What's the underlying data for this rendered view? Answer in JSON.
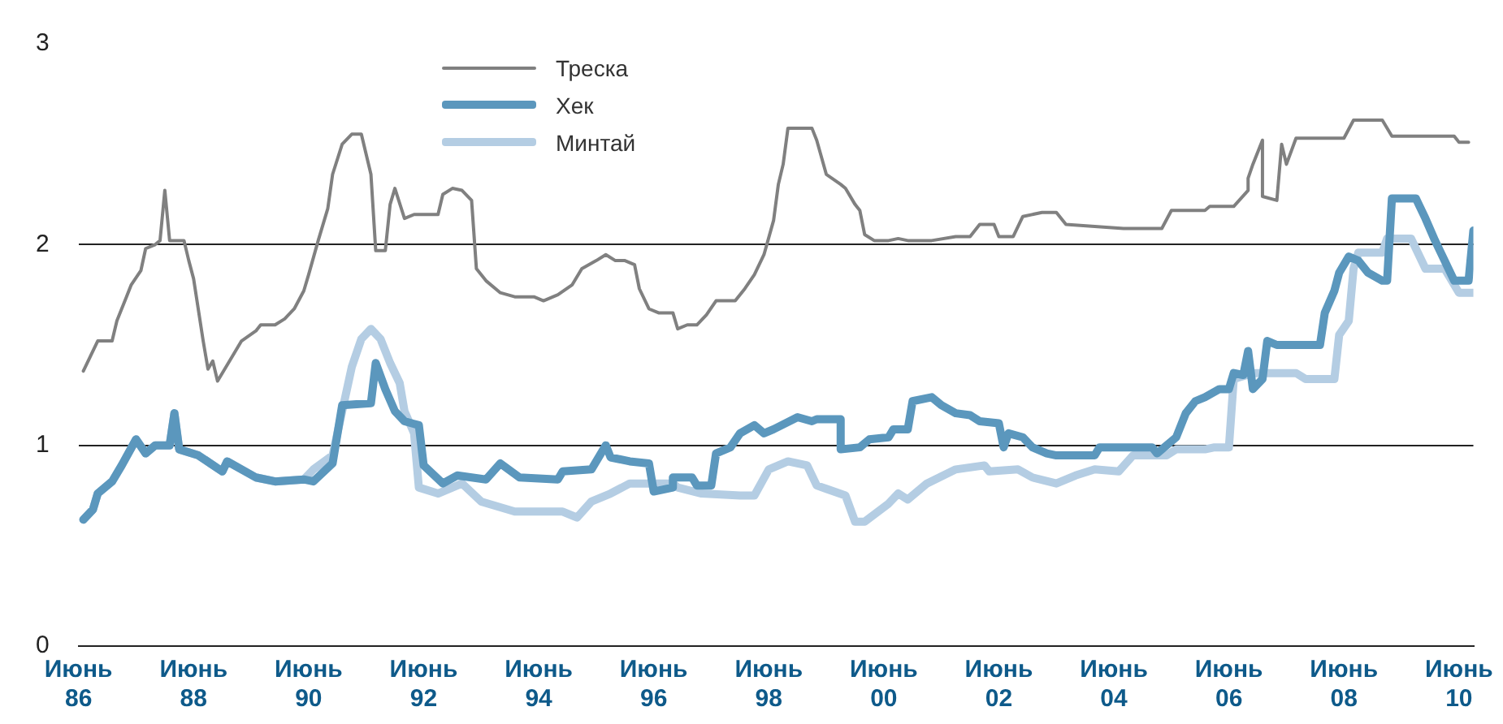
{
  "chart_data": {
    "type": "line",
    "legend": "top left",
    "grid": "y",
    "marker": "none",
    "xlim": [
      "1986-06",
      "2010-09"
    ],
    "ylim": [
      0,
      3
    ],
    "yticks": [
      0,
      1,
      2,
      3
    ],
    "xticks": [
      {
        "value": "1986-06",
        "label": "Июнь 86"
      },
      {
        "value": "1988-06",
        "label": "Июнь 88"
      },
      {
        "value": "1990-06",
        "label": "Июнь 90"
      },
      {
        "value": "1992-06",
        "label": "Июнь 92"
      },
      {
        "value": "1994-06",
        "label": "Июнь 94"
      },
      {
        "value": "1996-06",
        "label": "Июнь 96"
      },
      {
        "value": "1998-06",
        "label": "Июнь 98"
      },
      {
        "value": "2000-06",
        "label": "Июнь 00"
      },
      {
        "value": "2002-06",
        "label": "Июнь 02"
      },
      {
        "value": "2004-06",
        "label": "Июнь 04"
      },
      {
        "value": "2006-06",
        "label": "Июнь 06"
      },
      {
        "value": "2008-06",
        "label": "Июнь 08"
      },
      {
        "value": "2010-06",
        "label": "Июнь 10"
      }
    ],
    "series": [
      {
        "name": "Треска",
        "color": "#808080",
        "x": [
          "1986-07",
          "1986-10",
          "1987-01",
          "1987-02",
          "1987-04",
          "1987-05",
          "1987-07",
          "1987-08",
          "1987-10",
          "1987-11",
          "1987-12",
          "1988-01",
          "1988-04",
          "1988-05",
          "1988-06",
          "1988-08",
          "1988-09",
          "1988-10",
          "1988-11",
          "1989-01",
          "1989-04",
          "1989-07",
          "1989-08",
          "1989-11",
          "1990-01",
          "1990-03",
          "1990-05",
          "1990-06",
          "1990-08",
          "1990-10",
          "1990-11",
          "1991-01",
          "1991-03",
          "1991-05",
          "1991-06",
          "1991-07",
          "1991-08",
          "1991-10",
          "1991-11",
          "1991-12",
          "1992-02",
          "1992-04",
          "1992-09",
          "1992-10",
          "1992-12",
          "1993-02",
          "1993-04",
          "1993-05",
          "1993-07",
          "1993-10",
          "1994-01",
          "1994-05",
          "1994-07",
          "1994-10",
          "1995-01",
          "1995-03",
          "1995-06",
          "1995-08",
          "1995-10",
          "1995-12",
          "1996-02",
          "1996-03",
          "1996-05",
          "1996-07",
          "1996-10",
          "1996-11",
          "1997-01",
          "1997-03",
          "1997-05",
          "1997-07",
          "1997-11",
          "1998-01",
          "1998-03",
          "1998-05",
          "1998-07",
          "1998-08",
          "1998-09",
          "1998-10",
          "1999-03",
          "1999-04",
          "1999-06",
          "1999-09",
          "1999-10",
          "1999-12",
          "2000-01",
          "2000-02",
          "2000-04",
          "2000-07",
          "2000-09",
          "2000-11",
          "2001-04",
          "2001-09",
          "2001-12",
          "2002-02",
          "2002-05",
          "2002-06",
          "2002-09",
          "2002-11",
          "2003-03",
          "2003-06",
          "2003-08",
          "2004-08",
          "2005-04",
          "2005-06",
          "2006-01",
          "2006-02",
          "2006-07",
          "2006-10",
          "2006-10",
          "2006-11",
          "2007-01",
          "2007-01",
          "2007-04",
          "2007-05",
          "2007-06",
          "2007-08",
          "2008-06",
          "2008-08",
          "2009-02",
          "2009-04",
          "2010-05",
          "2010-06",
          "2010-08"
        ],
        "values": [
          1.37,
          1.52,
          1.52,
          1.62,
          1.74,
          1.8,
          1.87,
          1.98,
          2.0,
          2.02,
          2.27,
          2.02,
          2.02,
          1.92,
          1.83,
          1.52,
          1.38,
          1.42,
          1.32,
          1.4,
          1.52,
          1.57,
          1.6,
          1.6,
          1.63,
          1.68,
          1.77,
          1.85,
          2.02,
          2.18,
          2.35,
          2.5,
          2.55,
          2.55,
          2.45,
          2.35,
          1.97,
          1.97,
          2.2,
          2.28,
          2.13,
          2.15,
          2.15,
          2.25,
          2.28,
          2.27,
          2.22,
          1.88,
          1.82,
          1.76,
          1.74,
          1.74,
          1.72,
          1.75,
          1.8,
          1.88,
          1.92,
          1.95,
          1.92,
          1.92,
          1.9,
          1.78,
          1.68,
          1.66,
          1.66,
          1.58,
          1.6,
          1.6,
          1.65,
          1.72,
          1.72,
          1.78,
          1.85,
          1.95,
          2.12,
          2.3,
          2.4,
          2.58,
          2.58,
          2.52,
          2.35,
          2.3,
          2.28,
          2.2,
          2.17,
          2.05,
          2.02,
          2.02,
          2.03,
          2.02,
          2.02,
          2.04,
          2.04,
          2.1,
          2.1,
          2.04,
          2.04,
          2.14,
          2.16,
          2.16,
          2.1,
          2.08,
          2.08,
          2.17,
          2.17,
          2.19,
          2.19,
          2.27,
          2.33,
          2.4,
          2.52,
          2.24,
          2.22,
          2.5,
          2.4,
          2.53,
          2.53,
          2.62,
          2.62,
          2.54,
          2.54,
          2.51,
          2.51
        ]
      },
      {
        "name": "Хек",
        "color": "#5b97bd",
        "x": [
          "1986-07",
          "1986-09",
          "1986-10",
          "1987-01",
          "1987-03",
          "1987-06",
          "1987-08",
          "1987-10",
          "1988-01",
          "1988-02",
          "1988-03",
          "1988-07",
          "1988-12",
          "1989-01",
          "1989-07",
          "1989-11",
          "1990-05",
          "1990-07",
          "1990-11",
          "1991-01",
          "1991-07",
          "1991-08",
          "1991-10",
          "1991-12",
          "1992-02",
          "1992-05",
          "1992-06",
          "1992-10",
          "1993-01",
          "1993-07",
          "1993-10",
          "1994-02",
          "1994-10",
          "1994-11",
          "1995-05",
          "1995-08",
          "1995-09",
          "1996-01",
          "1996-05",
          "1996-06",
          "1996-10",
          "1996-10",
          "1997-02",
          "1997-03",
          "1997-06",
          "1997-07",
          "1997-10",
          "1997-12",
          "1998-03",
          "1998-05",
          "1998-07",
          "1998-12",
          "1999-03",
          "1999-04",
          "1999-09",
          "1999-09",
          "2000-01",
          "2000-03",
          "2000-07",
          "2000-08",
          "2000-11",
          "2000-12",
          "2001-04",
          "2001-06",
          "2001-09",
          "2001-12",
          "2002-02",
          "2002-06",
          "2002-07",
          "2002-08",
          "2002-11",
          "2003-01",
          "2003-04",
          "2003-06",
          "2004-02",
          "2004-03",
          "2005-02",
          "2005-03",
          "2005-06",
          "2005-07",
          "2005-09",
          "2005-11",
          "2006-01",
          "2006-04",
          "2006-06",
          "2006-07",
          "2006-09",
          "2006-10",
          "2006-11",
          "2007-01",
          "2007-02",
          "2007-04",
          "2008-01",
          "2008-02",
          "2008-04",
          "2008-05",
          "2008-07",
          "2008-09",
          "2008-11",
          "2009-02",
          "2009-03",
          "2009-04",
          "2009-09",
          "2009-11",
          "2010-01",
          "2010-03",
          "2010-05",
          "2010-08",
          "2010-09"
        ],
        "values": [
          0.63,
          0.68,
          0.76,
          0.82,
          0.9,
          1.03,
          0.96,
          1.0,
          1.0,
          1.16,
          0.98,
          0.95,
          0.87,
          0.92,
          0.84,
          0.82,
          0.83,
          0.82,
          0.91,
          1.2,
          1.21,
          1.41,
          1.28,
          1.17,
          1.12,
          1.1,
          0.9,
          0.81,
          0.85,
          0.83,
          0.91,
          0.84,
          0.83,
          0.87,
          0.88,
          1.0,
          0.94,
          0.92,
          0.91,
          0.77,
          0.79,
          0.84,
          0.84,
          0.8,
          0.8,
          0.96,
          0.99,
          1.06,
          1.1,
          1.06,
          1.08,
          1.14,
          1.12,
          1.13,
          1.13,
          0.98,
          0.99,
          1.03,
          1.04,
          1.08,
          1.08,
          1.22,
          1.24,
          1.2,
          1.16,
          1.15,
          1.12,
          1.11,
          0.99,
          1.06,
          1.04,
          0.99,
          0.96,
          0.95,
          0.95,
          0.99,
          0.99,
          0.96,
          1.02,
          1.04,
          1.16,
          1.22,
          1.24,
          1.28,
          1.28,
          1.36,
          1.35,
          1.47,
          1.28,
          1.33,
          1.52,
          1.5,
          1.5,
          1.66,
          1.77,
          1.86,
          1.94,
          1.92,
          1.86,
          1.82,
          1.82,
          2.23,
          2.23,
          2.13,
          2.02,
          1.92,
          1.82,
          1.82,
          2.07
        ]
      },
      {
        "name": "Минтай",
        "color": "#b4cde3",
        "x": [
          "1986-07",
          "1986-09",
          "1986-10",
          "1987-01",
          "1987-03",
          "1987-06",
          "1987-08",
          "1987-10",
          "1988-01",
          "1988-02",
          "1988-03",
          "1988-07",
          "1988-12",
          "1989-01",
          "1989-07",
          "1989-11",
          "1990-05",
          "1990-07",
          "1990-11",
          "1991-03",
          "1991-05",
          "1991-07",
          "1991-09",
          "1991-11",
          "1992-01",
          "1992-02",
          "1992-04",
          "1992-05",
          "1992-09",
          "1993-02",
          "1993-06",
          "1994-01",
          "1994-11",
          "1995-02",
          "1995-05",
          "1995-09",
          "1996-01",
          "1996-10",
          "1996-11",
          "1997-04",
          "1997-12",
          "1998-03",
          "1998-06",
          "1998-10",
          "1999-02",
          "1999-04",
          "1999-10",
          "1999-12",
          "2000-02",
          "2000-07",
          "2000-09",
          "2000-11",
          "2001-03",
          "2001-09",
          "2002-03",
          "2002-04",
          "2002-10",
          "2003-01",
          "2003-06",
          "2003-10",
          "2004-02",
          "2004-07",
          "2004-10",
          "2005-05",
          "2005-07",
          "2006-01",
          "2006-03",
          "2006-06",
          "2006-07",
          "2006-11",
          "2007-08",
          "2007-10",
          "2008-04",
          "2008-05",
          "2008-07",
          "2008-08",
          "2008-09",
          "2009-02",
          "2009-03",
          "2009-08",
          "2009-11",
          "2010-03",
          "2010-06",
          "2010-09"
        ],
        "values": [
          0.63,
          0.68,
          0.76,
          0.82,
          0.9,
          1.03,
          0.96,
          1.0,
          1.0,
          1.16,
          0.98,
          0.95,
          0.87,
          0.92,
          0.84,
          0.82,
          0.83,
          0.88,
          0.95,
          1.39,
          1.53,
          1.58,
          1.53,
          1.41,
          1.31,
          1.17,
          1.06,
          0.79,
          0.76,
          0.81,
          0.72,
          0.67,
          0.67,
          0.64,
          0.72,
          0.76,
          0.81,
          0.81,
          0.79,
          0.76,
          0.75,
          0.75,
          0.88,
          0.92,
          0.9,
          0.8,
          0.75,
          0.62,
          0.62,
          0.71,
          0.76,
          0.73,
          0.81,
          0.88,
          0.9,
          0.87,
          0.88,
          0.84,
          0.81,
          0.85,
          0.88,
          0.87,
          0.95,
          0.95,
          0.98,
          0.98,
          0.99,
          0.99,
          1.33,
          1.36,
          1.36,
          1.33,
          1.33,
          1.55,
          1.62,
          1.88,
          1.96,
          1.96,
          2.03,
          2.03,
          1.88,
          1.88,
          1.76,
          1.76
        ]
      }
    ]
  }
}
